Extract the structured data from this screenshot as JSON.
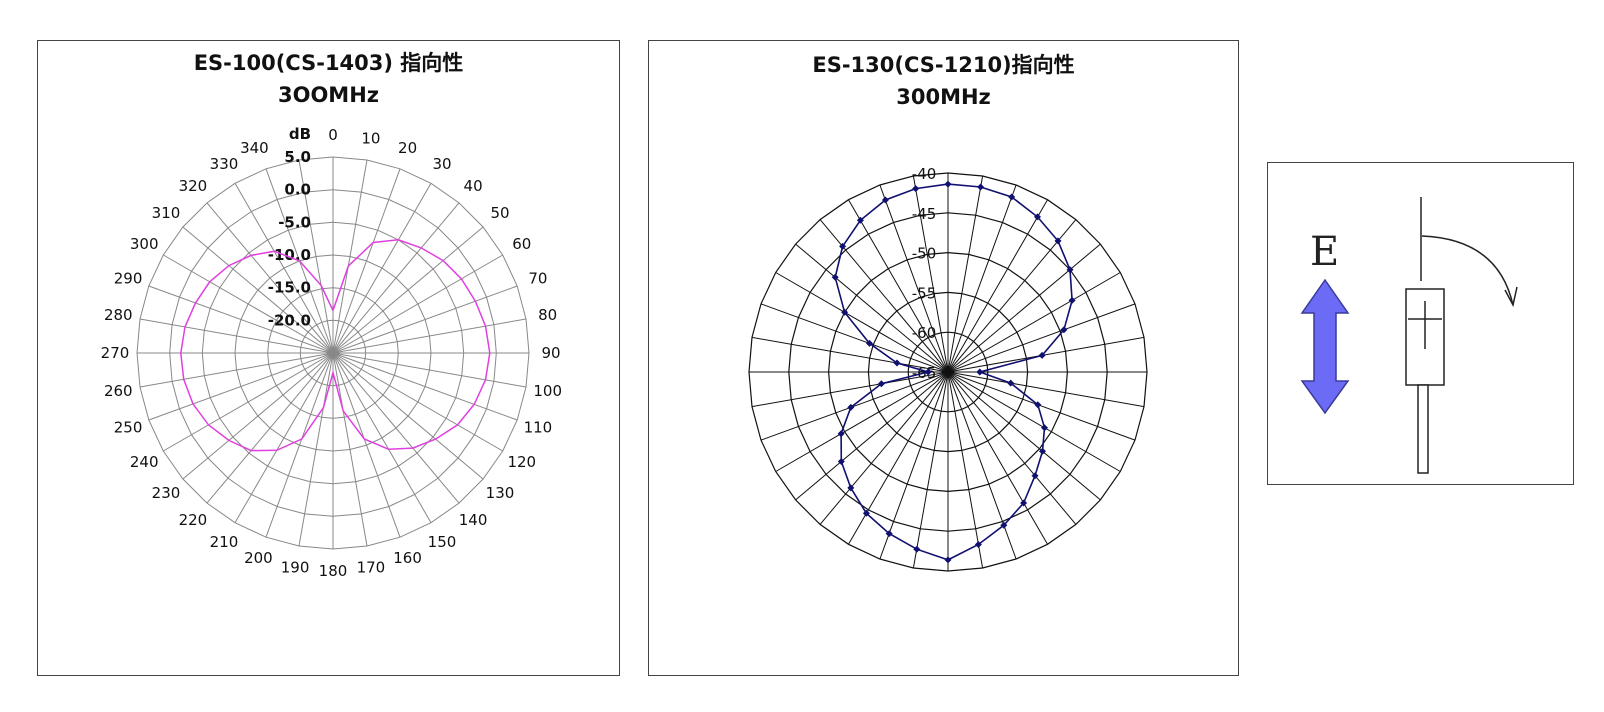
{
  "colors": {
    "left_series": "#e040e0",
    "mid_series": "#101070",
    "arrow_fill": "#6b6bf5"
  },
  "chart_data": [
    {
      "type": "polar",
      "title": "ES-100(CS-1403) 指向性",
      "subtitle": "3OOMHz",
      "radial_unit": "dB",
      "radial_ticks": [
        "5.0",
        "0.0",
        "-5.0",
        "-10.0",
        "-15.0",
        "-20.0"
      ],
      "radial_range": [
        -25,
        5
      ],
      "angle_ticks": [
        "0",
        "10",
        "20",
        "30",
        "40",
        "50",
        "60",
        "70",
        "80",
        "90",
        "100",
        "110",
        "120",
        "130",
        "140",
        "150",
        "160",
        "170",
        "180",
        "190",
        "200",
        "210",
        "220",
        "230",
        "240",
        "250",
        "260",
        "270",
        "280",
        "290",
        "300",
        "310",
        "320",
        "330",
        "340"
      ],
      "series": [
        {
          "angles": [
            0,
            10,
            20,
            30,
            40,
            50,
            60,
            70,
            80,
            90,
            100,
            110,
            120,
            130,
            140,
            150,
            160,
            170,
            180,
            190,
            200,
            210,
            220,
            230,
            240,
            250,
            260,
            270,
            280,
            290,
            300,
            310,
            320,
            330,
            340,
            350
          ],
          "values": [
            -18.5,
            -11.5,
            -7.0,
            -5.0,
            -4.0,
            -3.0,
            -2.3,
            -1.8,
            -1.3,
            -1.0,
            -1.3,
            -2.0,
            -3.0,
            -4.5,
            -6.0,
            -8.0,
            -11.0,
            -16.0,
            -22.0,
            -16.5,
            -11.0,
            -7.8,
            -5.5,
            -4.2,
            -3.0,
            -2.2,
            -1.8,
            -1.7,
            -2.0,
            -2.6,
            -3.2,
            -4.2,
            -5.5,
            -7.0,
            -10.0,
            -14.5
          ]
        }
      ]
    },
    {
      "type": "polar",
      "title": "ES-130(CS-1210)指向性",
      "subtitle": "300MHz",
      "radial_ticks": [
        "-40",
        "-45",
        "-50",
        "-55",
        "-60",
        "-65"
      ],
      "radial_range": [
        -65,
        -40
      ],
      "series": [
        {
          "angles": [
            0,
            10,
            20,
            30,
            40,
            50,
            60,
            70,
            80,
            90,
            100,
            110,
            120,
            130,
            140,
            150,
            160,
            170,
            180,
            190,
            200,
            210,
            220,
            230,
            240,
            250,
            260,
            270,
            280,
            290,
            300,
            310,
            320,
            330,
            340,
            350
          ],
          "values": [
            -41.4,
            -41.4,
            -41.6,
            -42.5,
            -43.5,
            -45.0,
            -47.0,
            -49.5,
            -53.0,
            -61.0,
            -57.0,
            -53.0,
            -51.0,
            -49.5,
            -48.0,
            -46.0,
            -44.5,
            -43.0,
            -41.4,
            -42.4,
            -43.4,
            -44.5,
            -46.0,
            -47.5,
            -49.5,
            -52.0,
            -56.5,
            -62.5,
            -58.5,
            -54.5,
            -50.0,
            -46.5,
            -44.4,
            -43.0,
            -42.0,
            -41.6
          ]
        }
      ]
    }
  ],
  "diagram": {
    "field_label": "E"
  }
}
